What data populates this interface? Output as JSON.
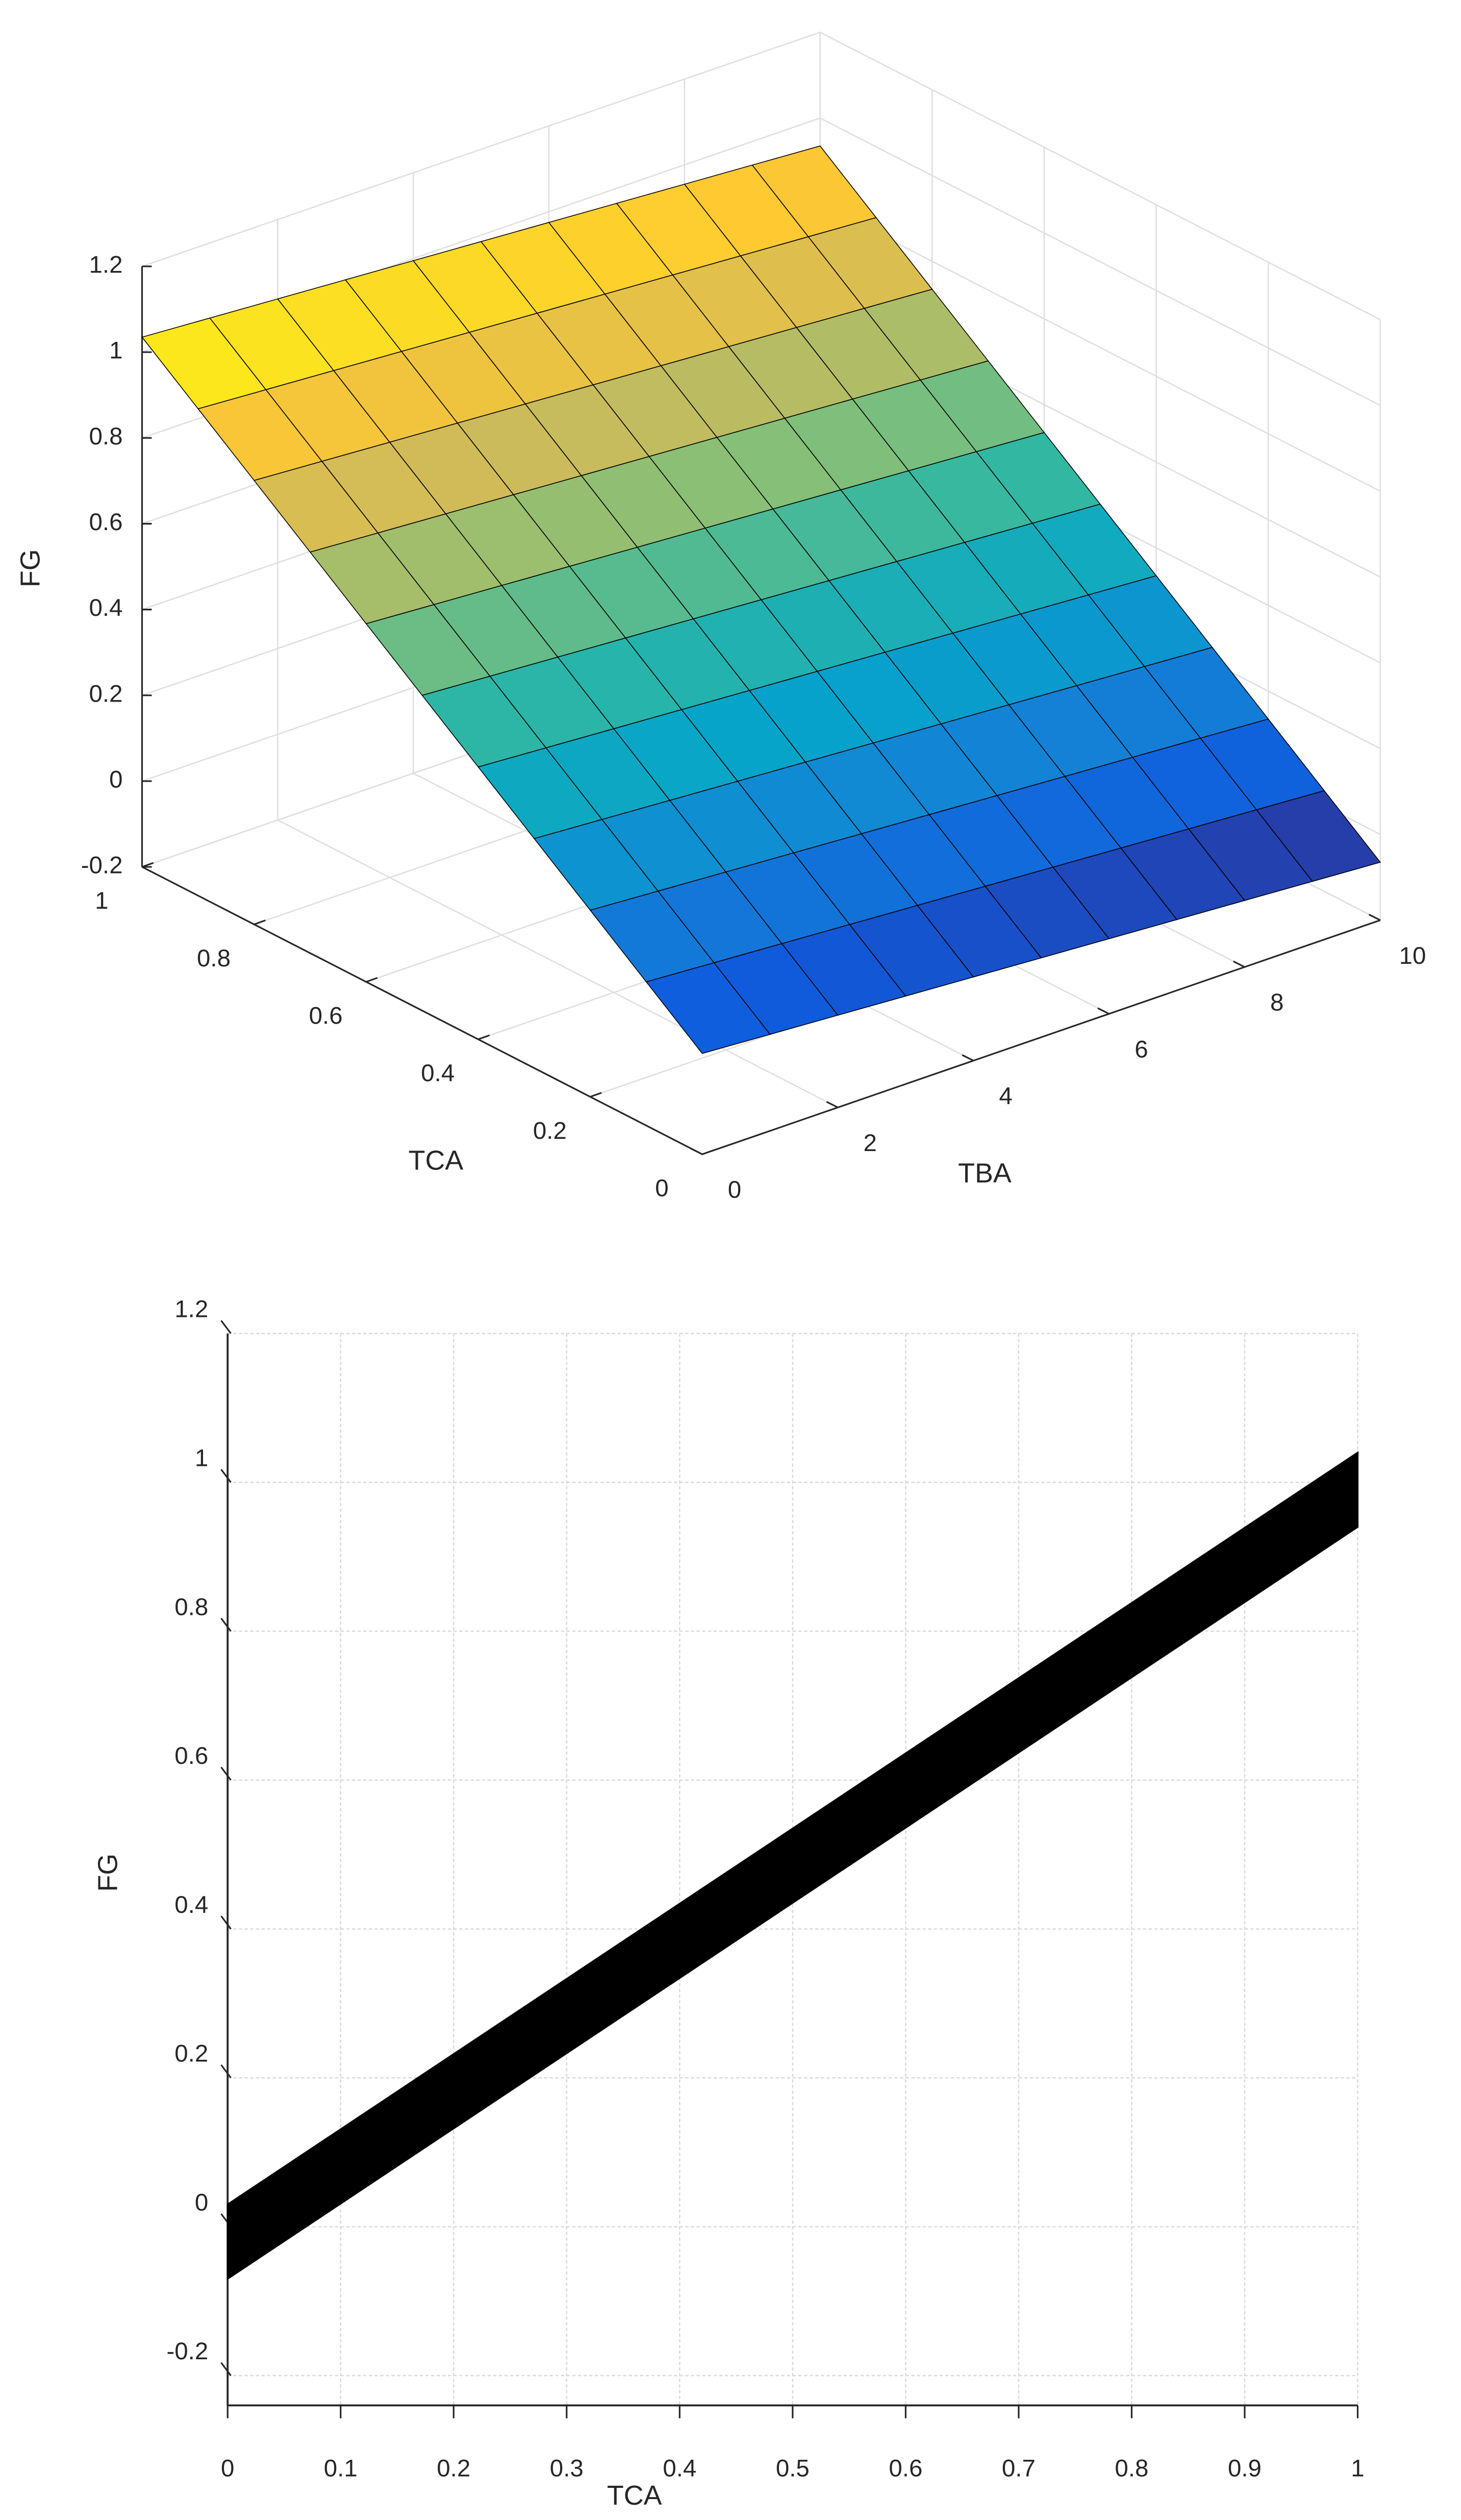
{
  "chart_data": [
    {
      "type": "surface",
      "xlabel": "TBA",
      "ylabel": "TCA",
      "zlabel": "FG",
      "x": [
        0,
        1,
        2,
        3,
        4,
        5,
        6,
        7,
        8,
        9,
        10
      ],
      "y": [
        0,
        0.1,
        0.2,
        0.3,
        0.4,
        0.5,
        0.6,
        0.7,
        0.8,
        0.9,
        1
      ],
      "z": [
        [
          0.035,
          0.025,
          0.015,
          0.005,
          -0.005,
          -0.015,
          -0.025,
          -0.035,
          -0.045,
          -0.055,
          -0.065
        ],
        [
          0.135,
          0.125,
          0.115,
          0.105,
          0.095,
          0.085,
          0.075,
          0.065,
          0.055,
          0.045,
          0.035
        ],
        [
          0.235,
          0.225,
          0.215,
          0.205,
          0.195,
          0.185,
          0.175,
          0.165,
          0.155,
          0.145,
          0.135
        ],
        [
          0.335,
          0.325,
          0.315,
          0.305,
          0.295,
          0.285,
          0.275,
          0.265,
          0.255,
          0.245,
          0.235
        ],
        [
          0.435,
          0.425,
          0.415,
          0.405,
          0.395,
          0.385,
          0.375,
          0.365,
          0.355,
          0.345,
          0.335
        ],
        [
          0.535,
          0.525,
          0.515,
          0.505,
          0.495,
          0.485,
          0.475,
          0.465,
          0.455,
          0.445,
          0.435
        ],
        [
          0.635,
          0.625,
          0.615,
          0.605,
          0.595,
          0.585,
          0.575,
          0.565,
          0.555,
          0.545,
          0.535
        ],
        [
          0.735,
          0.725,
          0.715,
          0.705,
          0.695,
          0.685,
          0.675,
          0.665,
          0.655,
          0.645,
          0.635
        ],
        [
          0.835,
          0.825,
          0.815,
          0.805,
          0.795,
          0.785,
          0.775,
          0.765,
          0.755,
          0.745,
          0.735
        ],
        [
          0.935,
          0.925,
          0.915,
          0.905,
          0.895,
          0.885,
          0.875,
          0.865,
          0.855,
          0.845,
          0.835
        ],
        [
          1.035,
          1.025,
          1.015,
          1.005,
          0.995,
          0.985,
          0.975,
          0.965,
          0.955,
          0.945,
          0.935
        ]
      ],
      "colormap": [
        "#352a87",
        "#0f5cdd",
        "#1481d6",
        "#06a4ca",
        "#2eb7a4",
        "#87bf77",
        "#d1bb59",
        "#fec832",
        "#f9fb0e"
      ],
      "edgecolor": "#000000",
      "xlim": [
        0,
        10
      ],
      "xticks": [
        0,
        2,
        4,
        6,
        8,
        10
      ],
      "ylim": [
        0,
        1
      ],
      "yticks": [
        0,
        0.2,
        0.4,
        0.6,
        0.8,
        1
      ],
      "zlim": [
        -0.2,
        1.2
      ],
      "zticks": [
        -0.2,
        0,
        0.2,
        0.4,
        0.6,
        0.8,
        1,
        1.2
      ],
      "grid": true
    },
    {
      "type": "band",
      "xlabel": "TCA",
      "ylabel": "FG",
      "x": [
        0,
        1
      ],
      "lower": [
        -0.07,
        0.94
      ],
      "upper": [
        0.03,
        1.04
      ],
      "color": "#000000",
      "xlim": [
        0,
        1
      ],
      "xticks": [
        0,
        0.1,
        0.2,
        0.3,
        0.4,
        0.5,
        0.6,
        0.7,
        0.8,
        0.9,
        1
      ],
      "ylim": [
        -0.24,
        1.2
      ],
      "yticks": [
        -0.2,
        0,
        0.2,
        0.4,
        0.6,
        0.8,
        1,
        1.2
      ],
      "grid": true
    }
  ]
}
